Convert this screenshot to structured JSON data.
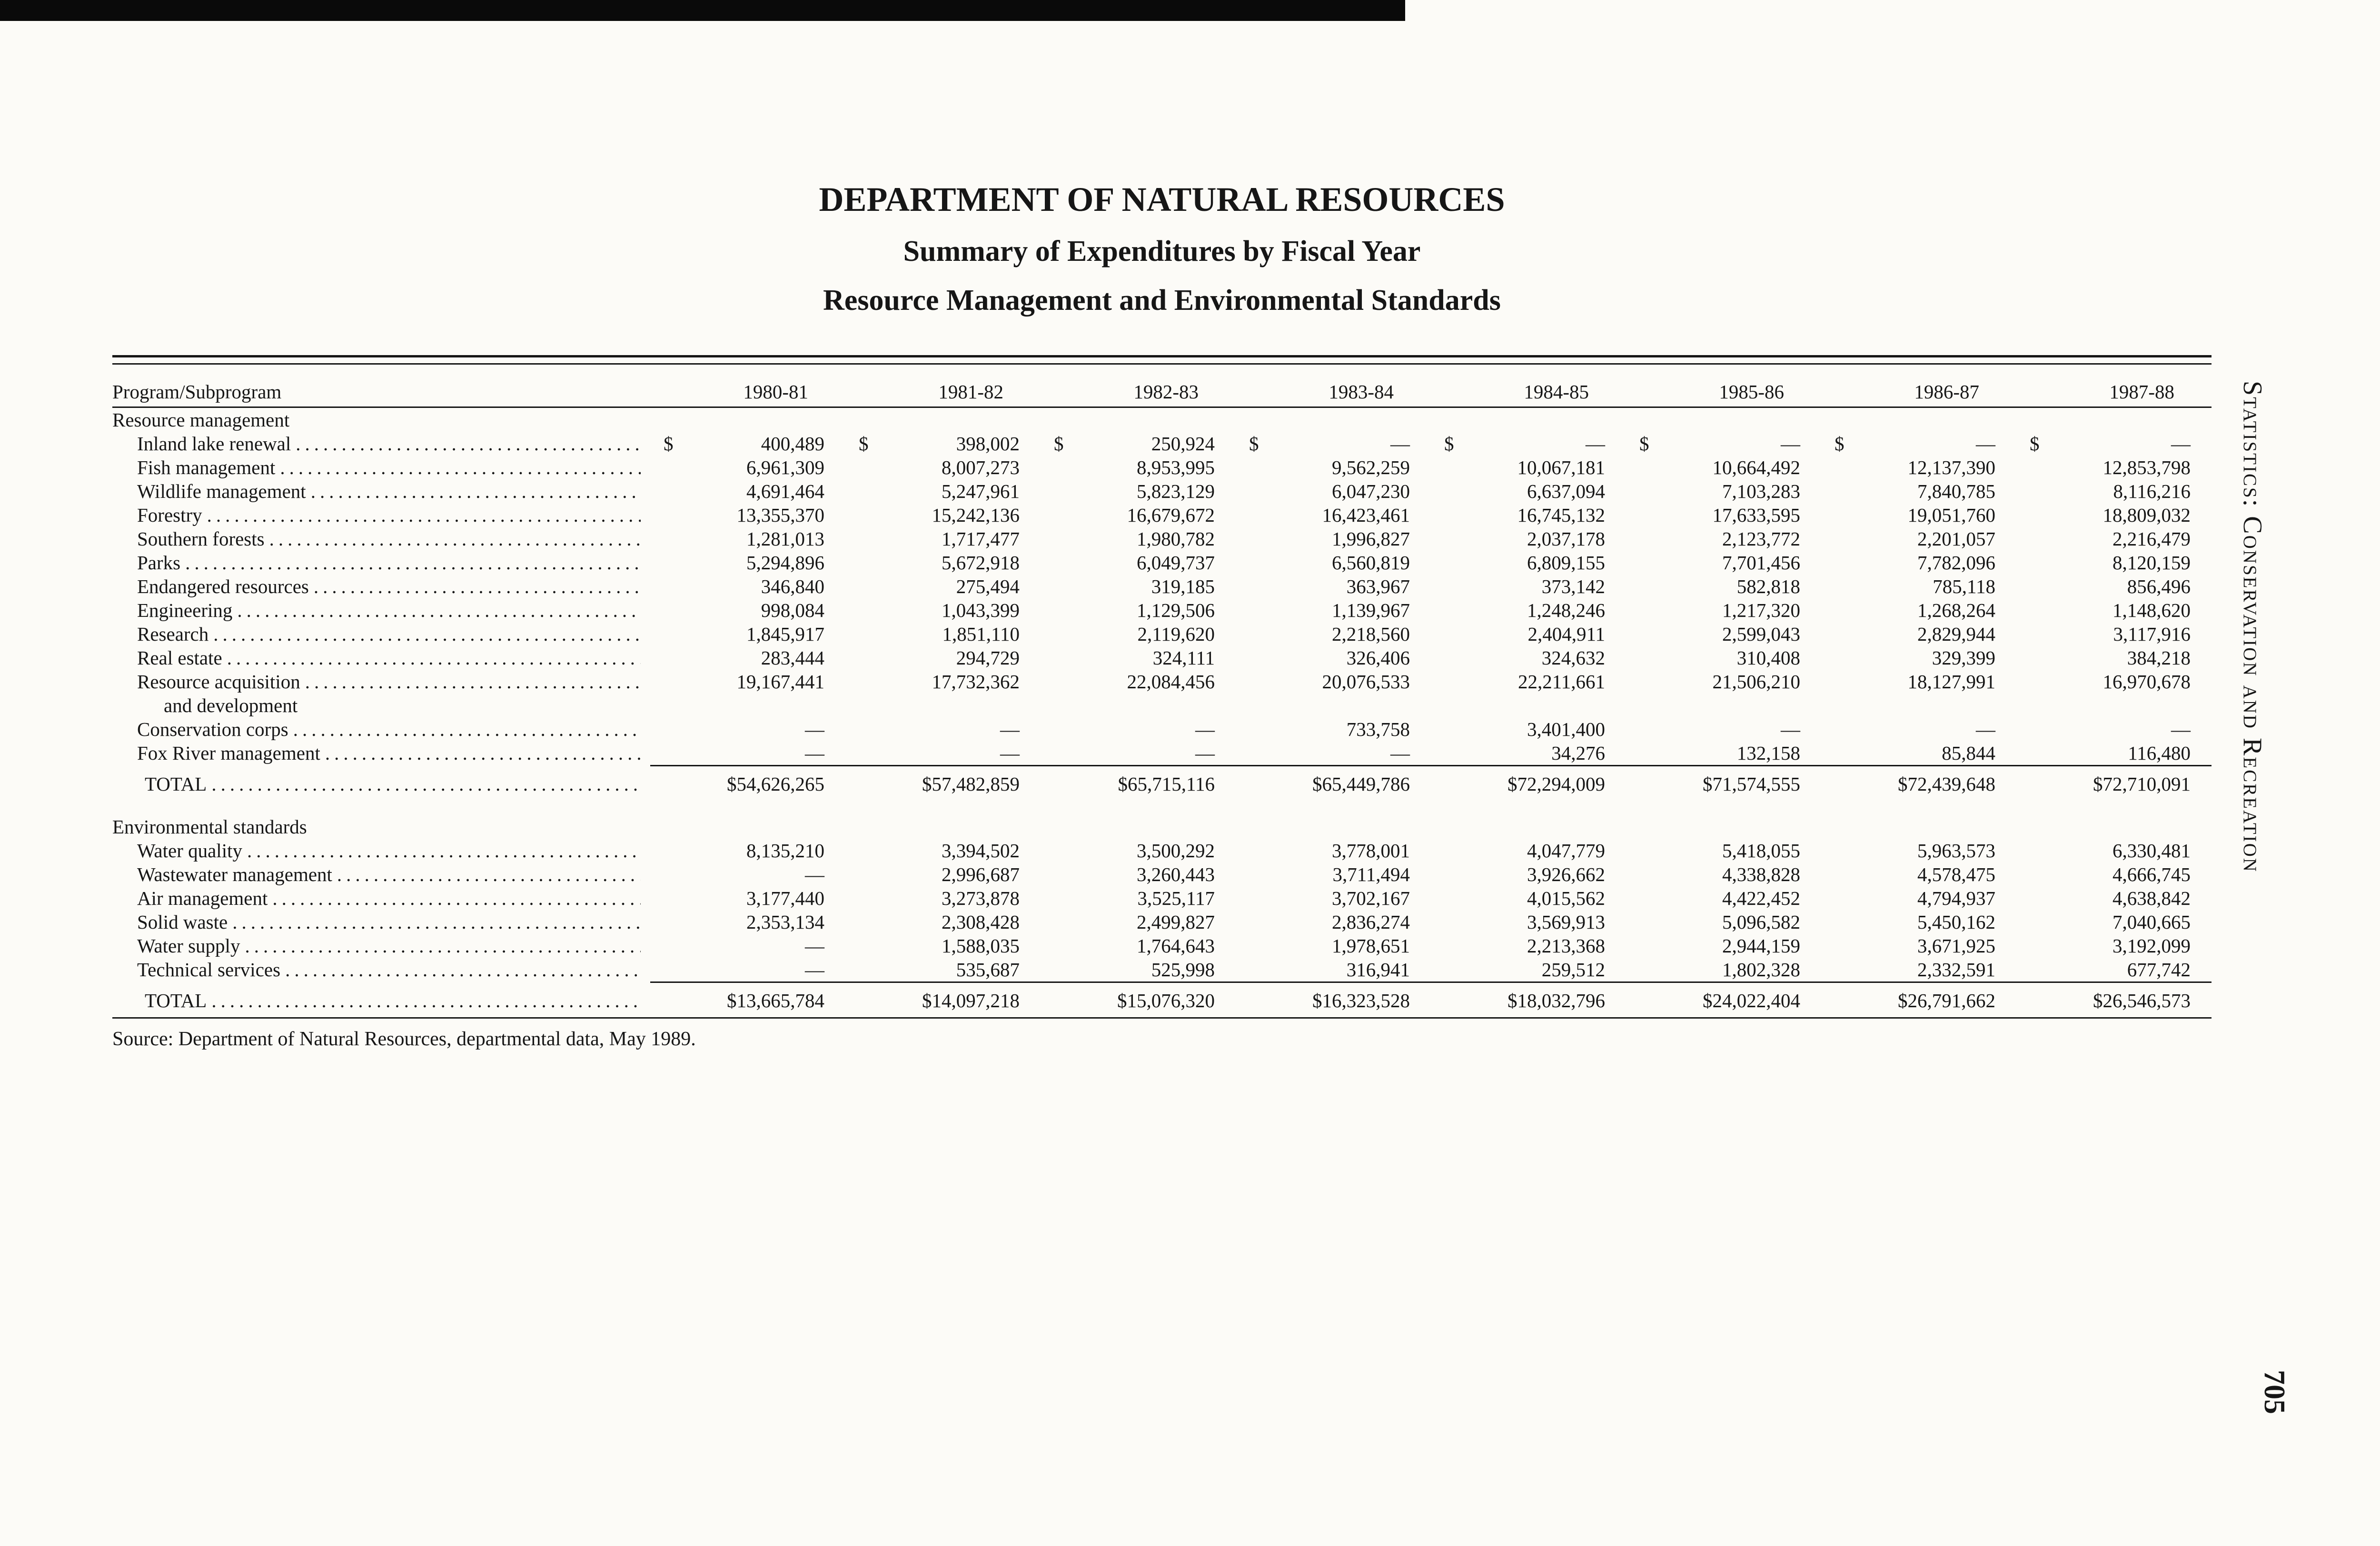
{
  "colors": {
    "paper": "#fcfbf7",
    "ink": "#161616"
  },
  "page": {
    "title": "DEPARTMENT OF NATURAL RESOURCES",
    "subtitle1": "Summary of Expenditures by Fiscal Year",
    "subtitle2": "Resource Management and Environmental Standards",
    "source": "Source: Department of Natural Resources, departmental data, May 1989.",
    "sidebar_text": "Statistics: Conservation and Recreation",
    "page_number": "705"
  },
  "table": {
    "program_header": "Program/Subprogram",
    "years": [
      "1980-81",
      "1981-82",
      "1982-83",
      "1983-84",
      "1984-85",
      "1985-86",
      "1986-87",
      "1987-88"
    ],
    "sections": [
      {
        "name": "Resource management",
        "rows": [
          {
            "label": "Inland lake renewal",
            "dollar": true,
            "values": [
              "400,489",
              "398,002",
              "250,924",
              "—",
              "—",
              "—",
              "—",
              "—"
            ]
          },
          {
            "label": "Fish management",
            "values": [
              "6,961,309",
              "8,007,273",
              "8,953,995",
              "9,562,259",
              "10,067,181",
              "10,664,492",
              "12,137,390",
              "12,853,798"
            ]
          },
          {
            "label": "Wildlife management",
            "values": [
              "4,691,464",
              "5,247,961",
              "5,823,129",
              "6,047,230",
              "6,637,094",
              "7,103,283",
              "7,840,785",
              "8,116,216"
            ]
          },
          {
            "label": "Forestry",
            "values": [
              "13,355,370",
              "15,242,136",
              "16,679,672",
              "16,423,461",
              "16,745,132",
              "17,633,595",
              "19,051,760",
              "18,809,032"
            ]
          },
          {
            "label": "Southern forests",
            "values": [
              "1,281,013",
              "1,717,477",
              "1,980,782",
              "1,996,827",
              "2,037,178",
              "2,123,772",
              "2,201,057",
              "2,216,479"
            ]
          },
          {
            "label": "Parks",
            "values": [
              "5,294,896",
              "5,672,918",
              "6,049,737",
              "6,560,819",
              "6,809,155",
              "7,701,456",
              "7,782,096",
              "8,120,159"
            ]
          },
          {
            "label": "Endangered resources",
            "values": [
              "346,840",
              "275,494",
              "319,185",
              "363,967",
              "373,142",
              "582,818",
              "785,118",
              "856,496"
            ]
          },
          {
            "label": "Engineering",
            "values": [
              "998,084",
              "1,043,399",
              "1,129,506",
              "1,139,967",
              "1,248,246",
              "1,217,320",
              "1,268,264",
              "1,148,620"
            ]
          },
          {
            "label": "Research",
            "values": [
              "1,845,917",
              "1,851,110",
              "2,119,620",
              "2,218,560",
              "2,404,911",
              "2,599,043",
              "2,829,944",
              "3,117,916"
            ]
          },
          {
            "label": "Real estate",
            "values": [
              "283,444",
              "294,729",
              "324,111",
              "326,406",
              "324,632",
              "310,408",
              "329,399",
              "384,218"
            ]
          },
          {
            "label": "Resource acquisition",
            "label_cont": "and development",
            "values": [
              "19,167,441",
              "17,732,362",
              "22,084,456",
              "20,076,533",
              "22,211,661",
              "21,506,210",
              "18,127,991",
              "16,970,678"
            ]
          },
          {
            "label": "Conservation corps",
            "values": [
              "—",
              "—",
              "—",
              "733,758",
              "3,401,400",
              "—",
              "—",
              "—"
            ]
          },
          {
            "label": "Fox River management",
            "values": [
              "—",
              "—",
              "—",
              "—",
              "34,276",
              "132,158",
              "85,844",
              "116,480"
            ]
          }
        ],
        "total_label": "TOTAL",
        "total_values": [
          "$54,626,265",
          "$57,482,859",
          "$65,715,116",
          "$65,449,786",
          "$72,294,009",
          "$71,574,555",
          "$72,439,648",
          "$72,710,091"
        ]
      },
      {
        "name": "Environmental standards",
        "rows": [
          {
            "label": "Water quality",
            "values": [
              "8,135,210",
              "3,394,502",
              "3,500,292",
              "3,778,001",
              "4,047,779",
              "5,418,055",
              "5,963,573",
              "6,330,481"
            ]
          },
          {
            "label": "Wastewater management",
            "values": [
              "—",
              "2,996,687",
              "3,260,443",
              "3,711,494",
              "3,926,662",
              "4,338,828",
              "4,578,475",
              "4,666,745"
            ]
          },
          {
            "label": "Air management",
            "values": [
              "3,177,440",
              "3,273,878",
              "3,525,117",
              "3,702,167",
              "4,015,562",
              "4,422,452",
              "4,794,937",
              "4,638,842"
            ]
          },
          {
            "label": "Solid waste",
            "values": [
              "2,353,134",
              "2,308,428",
              "2,499,827",
              "2,836,274",
              "3,569,913",
              "5,096,582",
              "5,450,162",
              "7,040,665"
            ]
          },
          {
            "label": "Water supply",
            "values": [
              "—",
              "1,588,035",
              "1,764,643",
              "1,978,651",
              "2,213,368",
              "2,944,159",
              "3,671,925",
              "3,192,099"
            ]
          },
          {
            "label": "Technical services",
            "values": [
              "—",
              "535,687",
              "525,998",
              "316,941",
              "259,512",
              "1,802,328",
              "2,332,591",
              "677,742"
            ]
          }
        ],
        "total_label": "TOTAL",
        "total_values": [
          "$13,665,784",
          "$14,097,218",
          "$15,076,320",
          "$16,323,528",
          "$18,032,796",
          "$24,022,404",
          "$26,791,662",
          "$26,546,573"
        ]
      }
    ]
  }
}
